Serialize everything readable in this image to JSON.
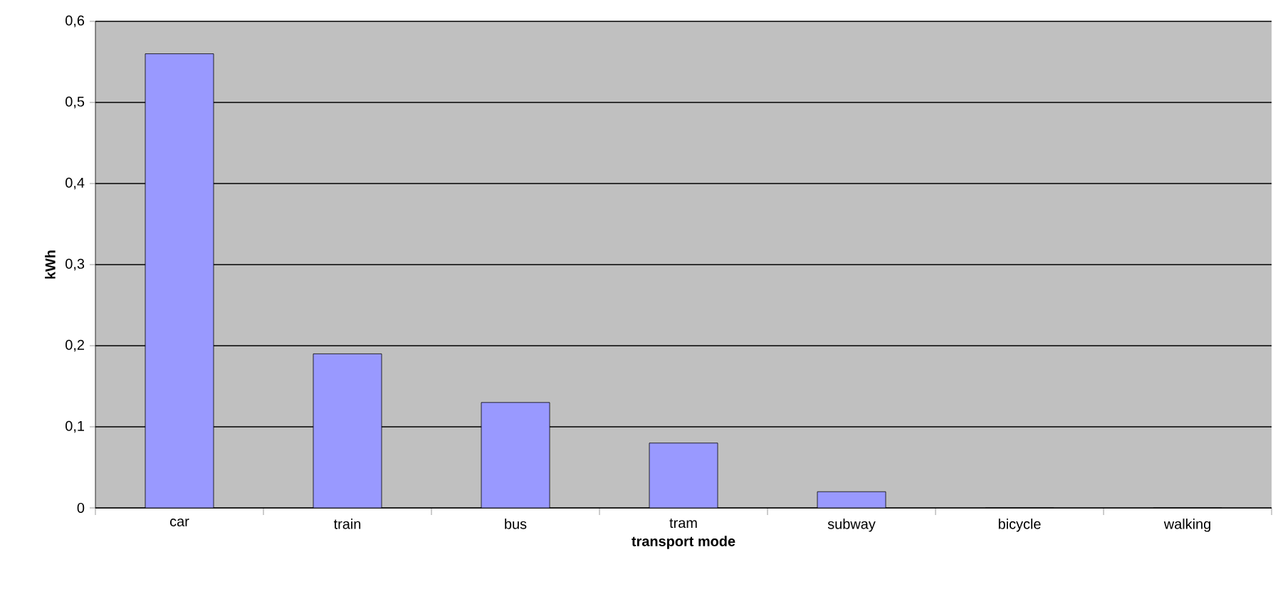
{
  "chart_data": {
    "type": "bar",
    "xlabel": "transport mode",
    "ylabel": "kWh",
    "categories": [
      "car",
      "train",
      "bus",
      "tram",
      "subway",
      "bicycle",
      "walking"
    ],
    "values": [
      0.56,
      0.19,
      0.13,
      0.08,
      0.02,
      0,
      0
    ],
    "color": "#9999ff",
    "ylim": [
      0,
      0.6
    ],
    "yticks": [
      {
        "value": 0,
        "label": "0"
      },
      {
        "value": 0.1,
        "label": "0,1"
      },
      {
        "value": 0.2,
        "label": "0,2"
      },
      {
        "value": 0.3,
        "label": "0,3"
      },
      {
        "value": 0.4,
        "label": "0,4"
      },
      {
        "value": 0.5,
        "label": "0,5"
      },
      {
        "value": 0.6,
        "label": "0,6"
      }
    ],
    "grid": "y"
  }
}
